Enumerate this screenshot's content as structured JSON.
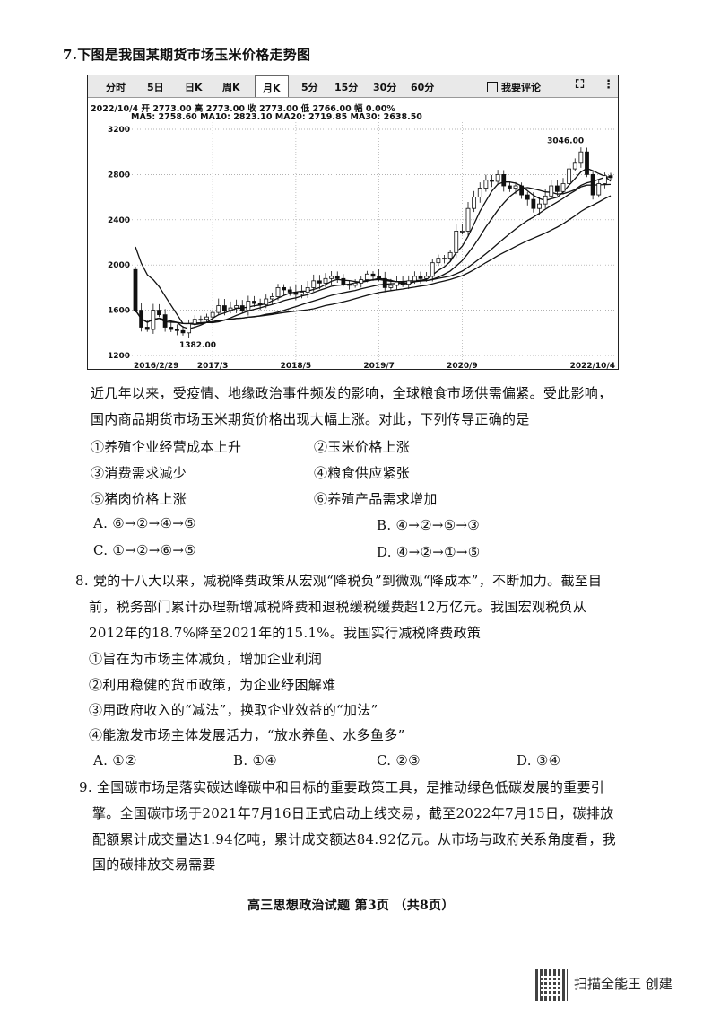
{
  "q7": {
    "title": "7.下图是我国某期货市场玉米价格走势图",
    "stem_lines": [
      "近几年以来，受疫情、地缘政治事件频发的影响，全球粮食市场供需偏紧。受此影响，",
      "国内商品期货市场玉米期货价格出现大幅上涨。对此，下列传导正确的是"
    ],
    "items": [
      "①养殖企业经营成本上升",
      "②玉米价格上涨",
      "③消费需求减少",
      "④粮食供应紧张",
      "⑤猪肉价格上涨",
      "⑥养殖产品需求增加"
    ],
    "options": [
      "A. ⑥→②→④→⑤",
      "B. ④→②→⑤→③",
      "C. ①→②→⑥→⑤",
      "D. ④→②→①→⑤"
    ]
  },
  "q8": {
    "stem_lines": [
      "8. 党的十八大以来，减税降费政策从宏观“降税负”到微观“降成本”，不断加力。截至目",
      "前，税务部门累计办理新增减税降费和退税缓税缓费超12万亿元。我国宏观税负从",
      "2012年的18.7%降至2021年的15.1%。我国实行减税降费政策"
    ],
    "items": [
      "①旨在为市场主体减负，增加企业利润",
      "②利用稳健的货币政策，为企业纾困解难",
      "③用政府收入的“减法”，换取企业效益的“加法”",
      "④能激发市场主体发展活力，“放水养鱼、水多鱼多”"
    ],
    "options": [
      "A. ①②",
      "B. ①④",
      "C. ②③",
      "D. ③④"
    ]
  },
  "q9": {
    "stem_lines": [
      "9. 全国碳市场是落实碳达峰碳中和目标的重要政策工具，是推动绿色低碳发展的重要引",
      "擎。全国碳市场于2021年7月16日正式启动上线交易，截至2022年7月15日，碳排放",
      "配额累计成交量达1.94亿吨，累计成交额达84.92亿元。从市场与政府关系角度看，我",
      "国的碳排放交易需要"
    ]
  },
  "footer": "高三思想政治试题 第3页  （共8页）",
  "watermark": "扫描全能王 创建",
  "chart_widget": {
    "tabs": [
      "分时",
      "5日",
      "日K",
      "周K",
      "月K",
      "5分",
      "15分",
      "30分",
      "60分"
    ],
    "active_tab": "月K",
    "comment_button": "我要评论",
    "icons": [
      "edit-icon",
      "fullscreen-icon",
      "more-icon"
    ],
    "info_line": "2022/10/4  开 2773.00  高 2773.00  收 2773.00  低 2766.00  幅 0.00%",
    "ma_line": "MA5: 2758.60   MA10: 2823.10   MA20: 2719.85   MA30: 2638.50"
  },
  "chart_data": {
    "type": "candlestick",
    "period": "monthly",
    "start": "2016/2",
    "end": "2022/10",
    "ylim": [
      1200,
      3200
    ],
    "yticks": [
      "3200",
      "2800",
      "2400",
      "2000",
      "1600",
      "1200"
    ],
    "xticks": [
      "2016/2/29",
      "2017/3",
      "2018/5",
      "2019/7",
      "2020/9",
      "2022/10/4"
    ],
    "grid": true,
    "annotations": {
      "high": "3046.00",
      "low": "1382.00"
    },
    "moving_averages": [
      "MA5",
      "MA10",
      "MA20",
      "MA30"
    ],
    "close": [
      1600,
      1450,
      1430,
      1600,
      1560,
      1450,
      1430,
      1420,
      1400,
      1480,
      1520,
      1520,
      1540,
      1580,
      1640,
      1600,
      1620,
      1640,
      1600,
      1680,
      1660,
      1650,
      1700,
      1720,
      1800,
      1780,
      1760,
      1740,
      1760,
      1800,
      1860,
      1840,
      1880,
      1900,
      1880,
      1830,
      1820,
      1840,
      1870,
      1920,
      1900,
      1880,
      1800,
      1820,
      1850,
      1830,
      1860,
      1900,
      1880,
      1900,
      2020,
      2060,
      2060,
      2110,
      2300,
      2300,
      2500,
      2600,
      2680,
      2750,
      2740,
      2800,
      2700,
      2680,
      2700,
      2620,
      2580,
      2500,
      2540,
      2610,
      2700,
      2650,
      2720,
      2850,
      2900,
      3000,
      2800,
      2620,
      2720,
      2790,
      2773
    ]
  }
}
